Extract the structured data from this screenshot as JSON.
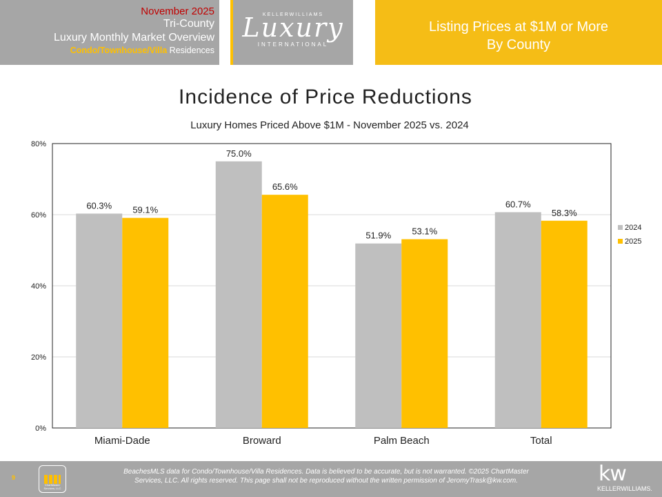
{
  "header": {
    "month": "November 2025",
    "region": "Tri-County",
    "report_title": "Luxury Monthly Market Overview",
    "segment_highlight": "Condo/Townhouse/Villa",
    "segment_suffix": " Residences",
    "logo": {
      "brand_small": "KELLERWILLIAMS",
      "brand_script": "Luxury",
      "brand_sub": "INTERNATIONAL"
    },
    "right_line1": "Listing Prices at $1M or More",
    "right_line2": "By County"
  },
  "chart_data": {
    "type": "bar",
    "title": "Incidence of Price Reductions",
    "subtitle": "Luxury Homes Priced Above $1M - November 2025 vs. 2024",
    "categories": [
      "Miami-Dade",
      "Broward",
      "Palm Beach",
      "Total"
    ],
    "series": [
      {
        "name": "2024",
        "values": [
          60.3,
          75.0,
          51.9,
          60.7
        ],
        "labels": [
          "60.3%",
          "75.0%",
          "51.9%",
          "60.7%"
        ],
        "color": "#bfbfbf"
      },
      {
        "name": "2025",
        "values": [
          59.1,
          65.6,
          53.1,
          58.3
        ],
        "labels": [
          "59.1%",
          "65.6%",
          "53.1%",
          "58.3%"
        ],
        "color": "#ffc000"
      }
    ],
    "ylim": [
      0,
      80
    ],
    "yticks": [
      0,
      20,
      40,
      60,
      80
    ],
    "ytick_labels": [
      "0%",
      "20%",
      "40%",
      "60%",
      "80%"
    ],
    "grid": true,
    "legend": "right"
  },
  "footer": {
    "page_number": "9",
    "chartmaster_label": "ChartMaster Services, LLC",
    "disclaimer_line1": "BeachesMLS data for Condo/Townhouse/Villa Residences.  Data is believed to be accurate, but is not warranted.   ©2025 ChartMaster",
    "disclaimer_line2": "Services, LLC.  All rights reserved. This page shall not be reproduced without the written permission of JeromyTrask@kw.com.",
    "kw_mark": "kw",
    "kw_name": "KELLERWILLIAMS."
  }
}
